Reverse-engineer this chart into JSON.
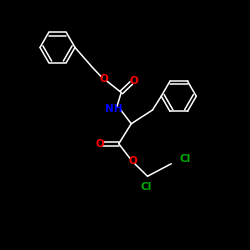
{
  "bg_color": "#000000",
  "bond_color": "#ffffff",
  "O_color": "#ff0000",
  "N_color": "#0000ff",
  "Cl_color": "#00aa00",
  "figsize": [
    2.5,
    2.5
  ],
  "dpi": 100,
  "xlim": [
    0,
    10
  ],
  "ylim": [
    0,
    10
  ],
  "ring_r": 0.7,
  "lw": 1.1,
  "fs": 7.5
}
